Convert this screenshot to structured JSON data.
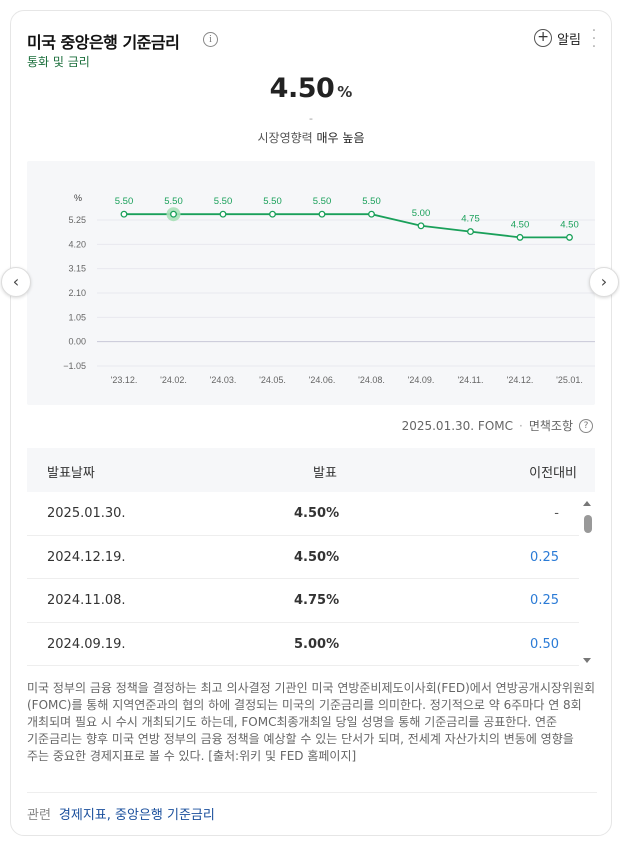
{
  "header": {
    "title": "미국 중앙은행 기준금리",
    "subtitle": "통화 및 금리",
    "alert_label": "알림"
  },
  "summary": {
    "rate": "4.50",
    "unit": "%",
    "dash": "-",
    "impact_label": "시장영향력",
    "impact_value": "매우 높음"
  },
  "chart_data": {
    "type": "line",
    "ylabel": "%",
    "y_ticks": [
      "5.25",
      "4.20",
      "3.15",
      "2.10",
      "1.05",
      "0.00",
      "−1.05"
    ],
    "y_tick_values": [
      5.25,
      4.2,
      3.15,
      2.1,
      1.05,
      0,
      -1.05
    ],
    "ylim": [
      -1.05,
      5.25
    ],
    "categories": [
      "'23.12.",
      "'24.02.",
      "'24.03.",
      "'24.05.",
      "'24.06.",
      "'24.08.",
      "'24.09.",
      "'24.11.",
      "'24.12.",
      "'25.01."
    ],
    "series": [
      {
        "values": [
          5.5,
          5.5,
          5.5,
          5.5,
          5.5,
          5.5,
          5.0,
          4.75,
          4.5,
          4.5
        ],
        "labels": [
          "5.50",
          "5.50",
          "5.50",
          "5.50",
          "5.50",
          "5.50",
          "5.00",
          "4.75",
          "4.50",
          "4.50"
        ],
        "color": "#1aa05a"
      }
    ],
    "highlight_index": 1,
    "grid": true
  },
  "source": {
    "date": "2025.01.30. FOMC",
    "separator": "·",
    "policy_label": "면책조항"
  },
  "table": {
    "headers": [
      "발표날짜",
      "발표",
      "이전대비"
    ],
    "rows": [
      {
        "date": "2025.01.30.",
        "value": "4.50%",
        "diff": "-"
      },
      {
        "date": "2024.12.19.",
        "value": "4.50%",
        "diff": "0.25"
      },
      {
        "date": "2024.11.08.",
        "value": "4.75%",
        "diff": "0.25"
      },
      {
        "date": "2024.09.19.",
        "value": "5.00%",
        "diff": "0.50"
      }
    ]
  },
  "description": "미국 정부의 금융 정책을 결정하는 최고 의사결정 기관인 미국 연방준비제도이사회(FED)에서 연방공개시장위원회(FOMC)를 통해 지역연준과의 협의 하에 결정되는 미국의 기준금리를 의미한다. 정기적으로 약 6주마다 연 8회 개최되며 필요 시 수시 개최되기도 하는데, FOMC최종개최일 당일 성명을 통해 기준금리를 공표한다. 연준 기준금리는 향후 미국 연방 정부의 금융 정책을 예상할 수 있는 단서가 되며, 전세계 자산가치의 변동에 영향을 주는 중요한 경제지표로 볼 수 있다. [출처:위키 및 FED 홈페이지]",
  "related": {
    "label": "관련",
    "links": "경제지표, 중앙은행 기준금리"
  },
  "colors": {
    "accent_green": "#1aa05a",
    "link_blue": "#2b7bd6",
    "subtitle_green": "#1a6e3b"
  },
  "icons": {
    "info": "info-icon",
    "plus": "plus-circle-icon",
    "more": "more-vertical-icon",
    "prev": "chevron-left-icon",
    "next": "chevron-right-icon",
    "help": "help-icon"
  }
}
